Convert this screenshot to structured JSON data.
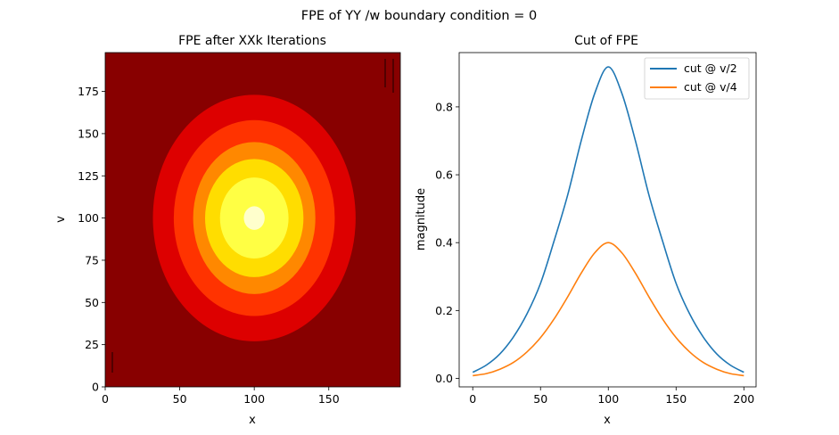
{
  "figure": {
    "suptitle": "FPE of YY /w boundary condition = 0"
  },
  "chart_data": [
    {
      "type": "heatmap",
      "title": "FPE after XXk Iterations",
      "xlabel": "x",
      "ylabel": "v",
      "xlim": [
        0,
        198
      ],
      "ylim": [
        0,
        198
      ],
      "x_ticks": [
        0,
        50,
        100,
        150
      ],
      "y_ticks": [
        0,
        25,
        50,
        75,
        100,
        125,
        150,
        175
      ],
      "grid": false,
      "center": [
        100,
        100
      ],
      "levels": [
        {
          "color": "#880000",
          "x_half_width": 999,
          "v_half_height": 999
        },
        {
          "color": "#dd0000",
          "x_half_width": 68,
          "v_half_height": 73
        },
        {
          "color": "#ff3300",
          "x_half_width": 54,
          "v_half_height": 58
        },
        {
          "color": "#ff8800",
          "x_half_width": 41,
          "v_half_height": 45
        },
        {
          "color": "#ffdd00",
          "x_half_width": 33,
          "v_half_height": 35
        },
        {
          "color": "#ffff44",
          "x_half_width": 23,
          "v_half_height": 24
        },
        {
          "color": "#ffffcc",
          "x_half_width": 7,
          "v_half_height": 7
        }
      ]
    },
    {
      "type": "line",
      "title": "Cut of FPE",
      "xlabel": "x",
      "ylabel": "magnitude",
      "xlim": [
        -10,
        209
      ],
      "ylim": [
        -0.025,
        0.96
      ],
      "x_ticks": [
        0,
        50,
        100,
        150,
        200
      ],
      "y_ticks": [
        0.0,
        0.2,
        0.4,
        0.6,
        0.8
      ],
      "y_tick_labels": [
        "0.0",
        "0.2",
        "0.4",
        "0.6",
        "0.8"
      ],
      "legend": "top-right",
      "grid": false,
      "x": [
        0,
        10,
        20,
        30,
        40,
        50,
        60,
        70,
        80,
        90,
        100,
        110,
        120,
        130,
        140,
        150,
        160,
        170,
        180,
        190,
        200
      ],
      "series": [
        {
          "name": "cut @ v/2",
          "color": "#1f77b4",
          "values": [
            0.018,
            0.039,
            0.072,
            0.122,
            0.19,
            0.28,
            0.405,
            0.54,
            0.7,
            0.84,
            0.918,
            0.84,
            0.7,
            0.54,
            0.405,
            0.28,
            0.19,
            0.122,
            0.072,
            0.039,
            0.018
          ]
        },
        {
          "name": "cut @ v/4",
          "color": "#ff7f0e",
          "values": [
            0.008,
            0.014,
            0.027,
            0.047,
            0.078,
            0.12,
            0.175,
            0.24,
            0.31,
            0.37,
            0.4,
            0.37,
            0.31,
            0.24,
            0.175,
            0.12,
            0.078,
            0.047,
            0.027,
            0.014,
            0.008
          ]
        }
      ]
    }
  ]
}
